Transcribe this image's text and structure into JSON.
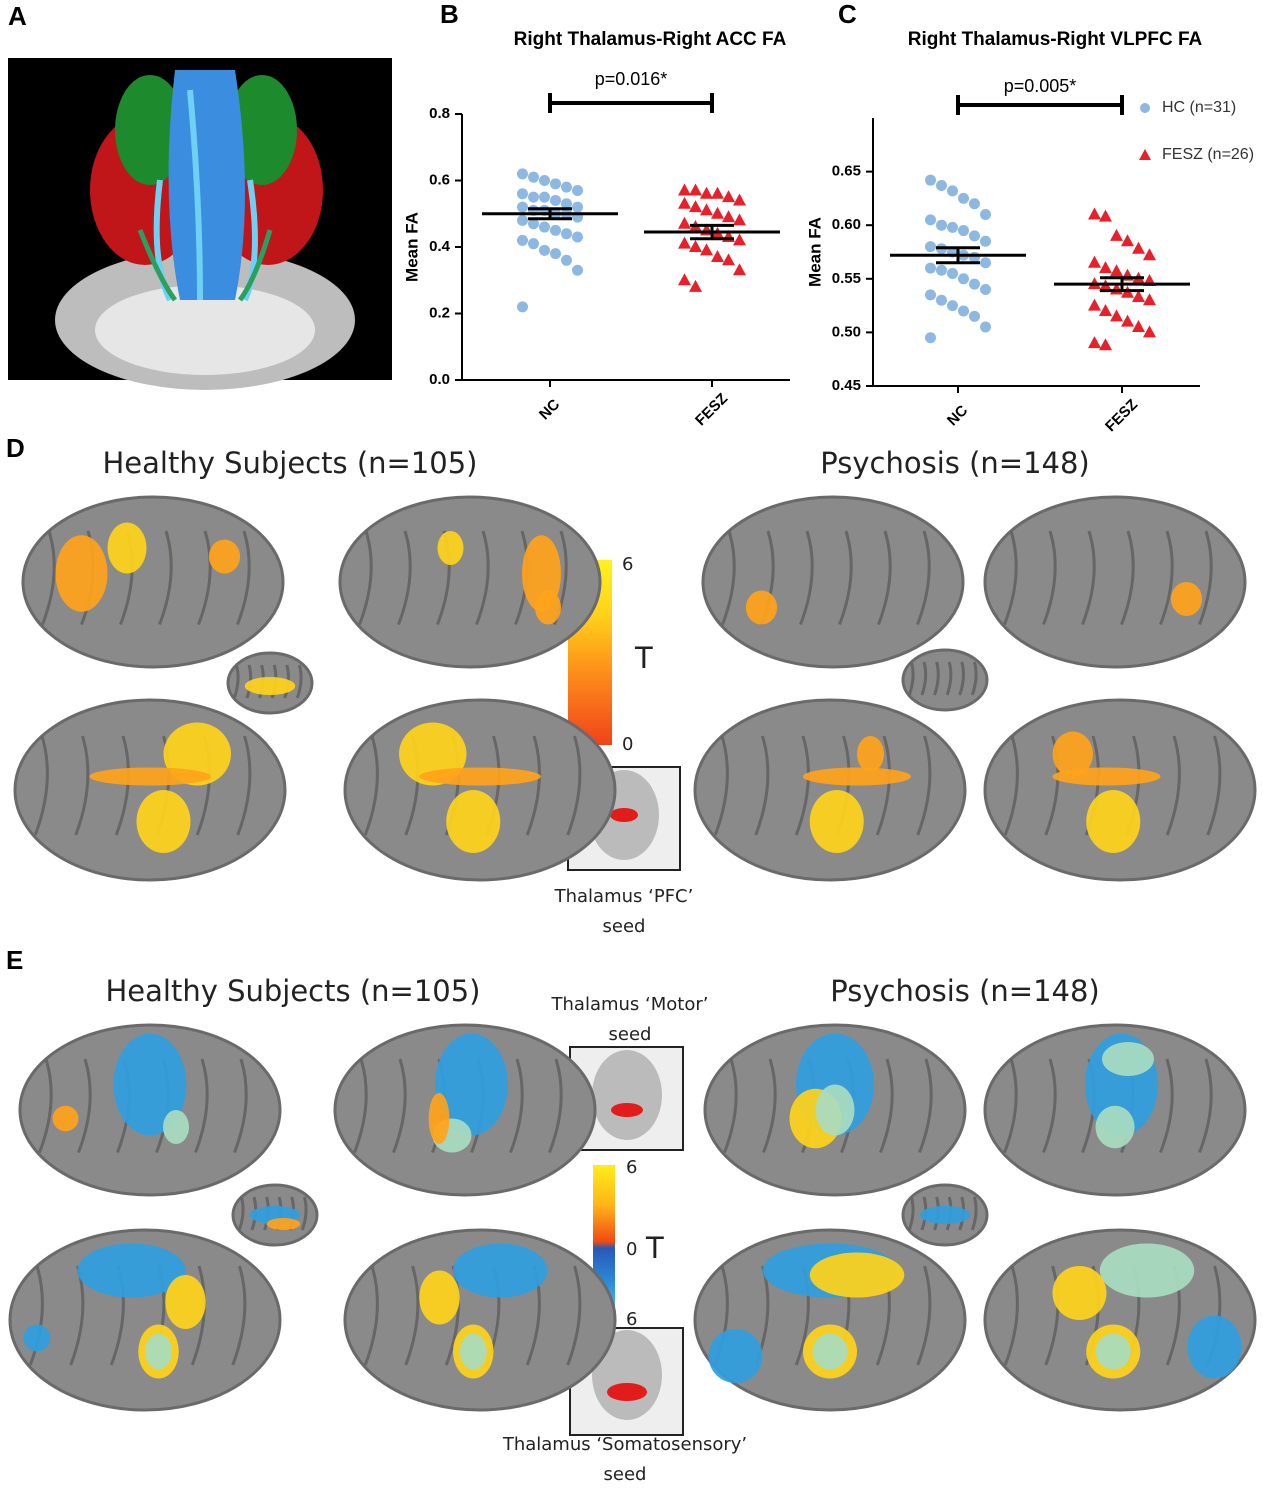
{
  "panel_labels": [
    "A",
    "B",
    "C",
    "D",
    "E"
  ],
  "chart_data": [
    {
      "type": "scatter",
      "title": "Right Thalamus-Right ACC FA",
      "y_label": "Mean FA",
      "categories": [
        "NC",
        "FESZ"
      ],
      "annotation": "p=0.016*",
      "ylim": [
        0,
        0.8
      ],
      "yticks": [
        {
          "value": 0,
          "label": "0.0"
        },
        0.2,
        0.4,
        0.6,
        0.8
      ],
      "series": [
        {
          "color": "#8db8e2",
          "marker": "circle",
          "mean": 0.5,
          "sem": 0.015,
          "values": [
            0.62,
            0.61,
            0.6,
            0.59,
            0.58,
            0.57,
            0.56,
            0.55,
            0.55,
            0.54,
            0.53,
            0.52,
            0.52,
            0.51,
            0.51,
            0.5,
            0.5,
            0.49,
            0.48,
            0.47,
            0.46,
            0.45,
            0.44,
            0.43,
            0.42,
            0.41,
            0.39,
            0.38,
            0.36,
            0.33,
            0.22
          ]
        },
        {
          "color": "#e8202a",
          "marker": "triangle",
          "mean": 0.445,
          "sem": 0.02,
          "values": [
            0.57,
            0.57,
            0.56,
            0.56,
            0.55,
            0.54,
            0.53,
            0.52,
            0.51,
            0.5,
            0.49,
            0.48,
            0.47,
            0.46,
            0.45,
            0.44,
            0.43,
            0.42,
            0.41,
            0.4,
            0.39,
            0.37,
            0.36,
            0.33,
            0.3,
            0.28
          ]
        }
      ]
    },
    {
      "type": "scatter",
      "title": "Right Thalamus-Right VLPFC FA",
      "y_label": "Mean FA",
      "categories": [
        "NC",
        "FESZ"
      ],
      "annotation": "p=0.005*",
      "ylim": [
        0.45,
        0.7
      ],
      "yticks": [
        0.45,
        {
          "value": 0.5,
          "label": "0.50"
        },
        0.55,
        {
          "value": 0.6,
          "label": "0.60"
        },
        0.65
      ],
      "legend": "upper right",
      "series": [
        {
          "name": "HC (n=31)",
          "color": "#8db8e2",
          "marker": "circle",
          "mean": 0.572,
          "sem": 0.007,
          "values": [
            0.642,
            0.637,
            0.632,
            0.625,
            0.62,
            0.61,
            0.605,
            0.6,
            0.598,
            0.595,
            0.59,
            0.585,
            0.58,
            0.578,
            0.575,
            0.572,
            0.57,
            0.565,
            0.56,
            0.558,
            0.555,
            0.55,
            0.545,
            0.54,
            0.535,
            0.53,
            0.525,
            0.52,
            0.515,
            0.505,
            0.495
          ]
        },
        {
          "name": "FESZ (n=26)",
          "color": "#e8202a",
          "marker": "triangle",
          "mean": 0.545,
          "sem": 0.006,
          "values": [
            0.61,
            0.608,
            0.59,
            0.585,
            0.578,
            0.572,
            0.565,
            0.56,
            0.557,
            0.553,
            0.55,
            0.548,
            0.545,
            0.543,
            0.54,
            0.537,
            0.533,
            0.53,
            0.525,
            0.52,
            0.515,
            0.51,
            0.505,
            0.5,
            0.49,
            0.488
          ]
        }
      ]
    }
  ],
  "panel_d": {
    "titles": [
      "Healthy Subjects (n=105)",
      "Psychosis (n=148)"
    ],
    "colorbar": [
      "6",
      "T",
      "0"
    ],
    "seed": [
      "Thalamus ‘PFC’",
      "seed"
    ]
  },
  "panel_e": {
    "titles": [
      "Healthy Subjects (n=105)",
      "Psychosis (n=148)"
    ],
    "colorbar": [
      "6",
      "0",
      "T",
      "6"
    ],
    "seeds": [
      [
        "Thalamus ‘Motor’",
        "seed"
      ],
      [
        "Thalamus ‘Somatosensory’",
        "seed"
      ]
    ]
  }
}
